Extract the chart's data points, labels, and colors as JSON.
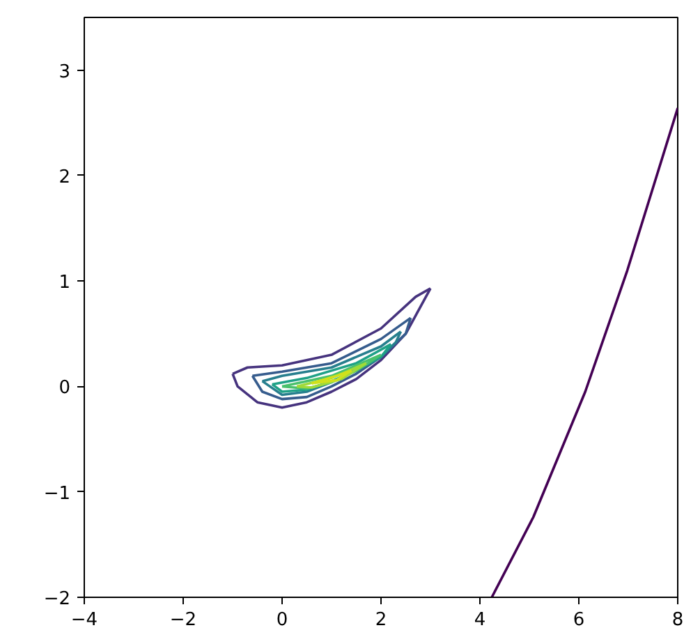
{
  "chart_data": {
    "type": "line",
    "xlim": [
      -4,
      8
    ],
    "ylim": [
      -2,
      3.5
    ],
    "xticks": [
      {
        "value": -4,
        "label": "−4"
      },
      {
        "value": -2,
        "label": "−2"
      },
      0,
      2,
      4,
      6,
      8
    ],
    "yticks": [
      {
        "value": -2,
        "label": "−2"
      },
      {
        "value": -1,
        "label": "−1"
      },
      0,
      1,
      2,
      3
    ],
    "grid": false,
    "marker": "none",
    "line_style": "solid",
    "series": [
      {
        "color": "#46337e",
        "x": [
          -1.0,
          -0.7,
          0,
          1,
          2,
          2.7,
          3.0
        ],
        "values": [
          0.12,
          0.18,
          0.2,
          0.3,
          0.55,
          0.85,
          0.93
        ]
      },
      {
        "color": "#46337e",
        "x": [
          -1.0,
          -0.9,
          -0.5,
          0,
          0.5,
          1,
          1.5,
          2,
          2.5,
          3.0
        ],
        "values": [
          0.12,
          0,
          -0.15,
          -0.2,
          -0.15,
          -0.05,
          0.07,
          0.25,
          0.5,
          0.93
        ]
      },
      {
        "color": "#365c8d",
        "x": [
          -0.6,
          0,
          1,
          2,
          2.6
        ],
        "values": [
          0.1,
          0.14,
          0.22,
          0.45,
          0.65
        ]
      },
      {
        "color": "#365c8d",
        "x": [
          -0.6,
          -0.4,
          0,
          0.5,
          1,
          1.5,
          2,
          2.5,
          2.6
        ],
        "values": [
          0.1,
          -0.05,
          -0.12,
          -0.1,
          0,
          0.12,
          0.28,
          0.5,
          0.65
        ]
      },
      {
        "color": "#277f8e",
        "x": [
          -0.4,
          0,
          1,
          2,
          2.4
        ],
        "values": [
          0.05,
          0.1,
          0.18,
          0.38,
          0.52
        ]
      },
      {
        "color": "#277f8e",
        "x": [
          -0.4,
          0,
          0.5,
          1,
          2,
          2.3,
          2.4
        ],
        "values": [
          0.05,
          -0.08,
          -0.05,
          0.04,
          0.28,
          0.42,
          0.52
        ]
      },
      {
        "color": "#1fa187",
        "x": [
          -0.2,
          0.5,
          1.5,
          2.2
        ],
        "values": [
          0.02,
          0.08,
          0.22,
          0.4
        ]
      },
      {
        "color": "#1fa187",
        "x": [
          -0.2,
          0,
          0.5,
          1,
          1.5,
          2,
          2.2
        ],
        "values": [
          0.02,
          -0.05,
          -0.03,
          0.05,
          0.15,
          0.28,
          0.4
        ]
      },
      {
        "color": "#4ac16d",
        "x": [
          0,
          1,
          2
        ],
        "values": [
          0,
          0.1,
          0.3
        ]
      },
      {
        "color": "#4ac16d",
        "x": [
          0,
          0.5,
          1,
          1.5,
          2
        ],
        "values": [
          0,
          -0.02,
          0.04,
          0.15,
          0.3
        ]
      },
      {
        "color": "#a0da39",
        "x": [
          0.3,
          1,
          1.7
        ],
        "values": [
          0,
          0.08,
          0.22
        ]
      },
      {
        "color": "#a0da39",
        "x": [
          0.3,
          0.6,
          1.2,
          1.7
        ],
        "values": [
          0,
          -0.01,
          0.07,
          0.22
        ]
      },
      {
        "color": "#d0e11c",
        "x": [
          0.6,
          1.1,
          1.4
        ],
        "values": [
          0.03,
          0.1,
          0.15
        ]
      },
      {
        "color": "#d0e11c",
        "x": [
          0.6,
          1.1,
          1.4
        ],
        "values": [
          0.03,
          0.06,
          0.15
        ]
      },
      {
        "color": "#440154",
        "x": [
          4.24,
          5.08,
          6.13,
          6.98,
          8.0
        ],
        "values": [
          -2.0,
          -1.24,
          -0.05,
          1.1,
          2.64
        ]
      }
    ]
  }
}
